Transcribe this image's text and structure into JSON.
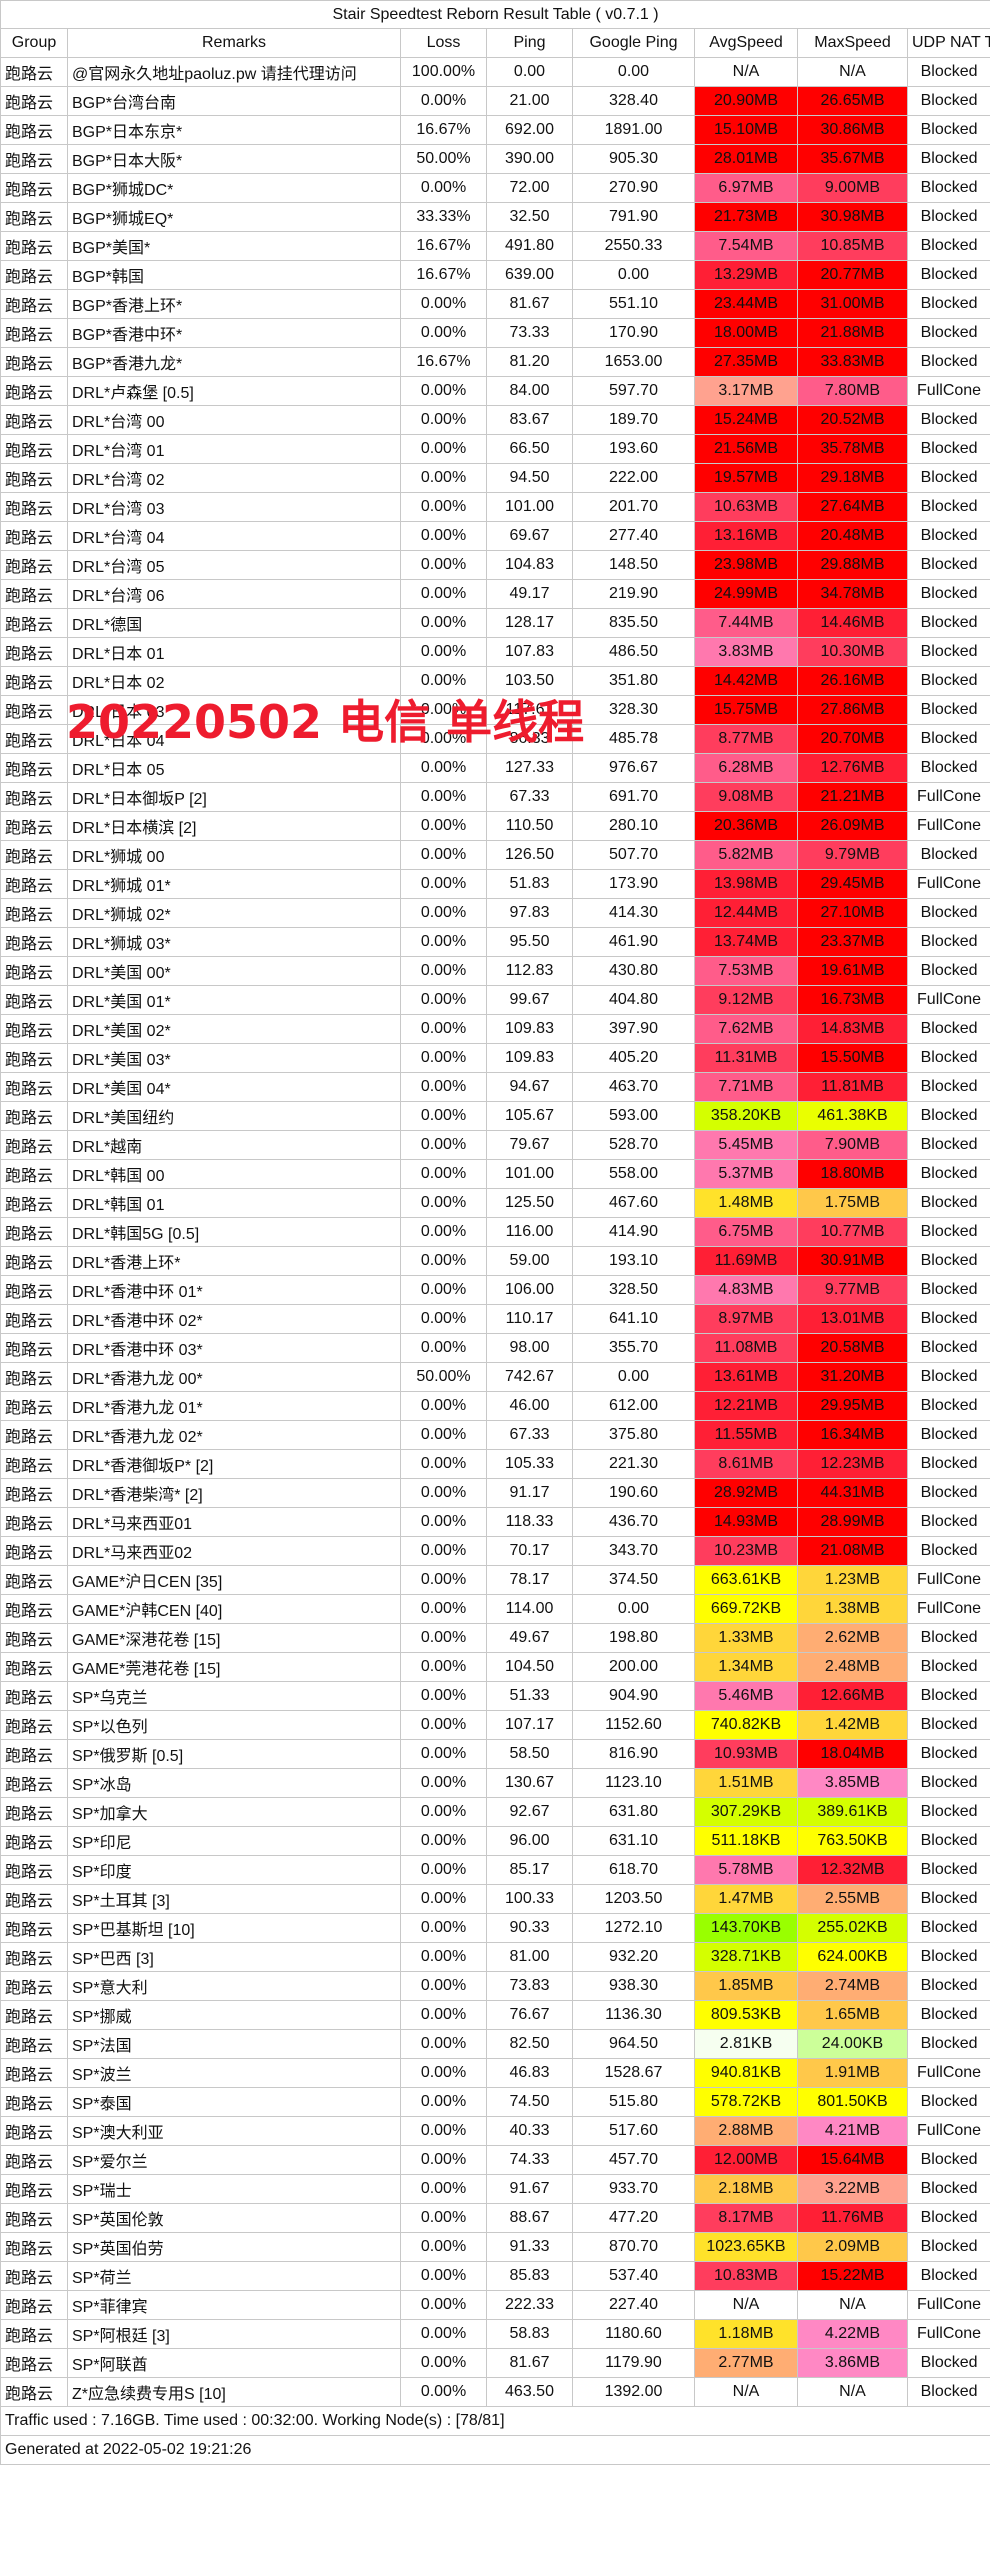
{
  "title": "Stair Speedtest Reborn Result Table ( v0.7.1 )",
  "headers": [
    "Group",
    "Remarks",
    "Loss",
    "Ping",
    "Google Ping",
    "AvgSpeed",
    "MaxSpeed",
    "UDP NAT Type"
  ],
  "watermark": "20220502 电信 单线程",
  "colors": {
    "r": "#ff0000",
    "r2": "#ff1f35",
    "r3": "#ff3d5d",
    "pk": "#ff5c8a",
    "lp": "#ff78ae",
    "sa": "#ffa28f",
    "or": "#ffad73",
    "g3": "#ffc84a",
    "g2": "#ffd63a",
    "g": "#ffe22a",
    "y": "#ffff00",
    "yl": "#eaff00",
    "lm": "#d4ff00",
    "gr": "#99ff00",
    "lv": "#ff88c4",
    "wg": "#f6fff0",
    "lg": "#ccff99",
    "n": "#ffffff"
  },
  "rows": [
    [
      "跑路云",
      "@官网永久地址paoluz.pw 请挂代理访问",
      "100.00%",
      "0.00",
      "0.00",
      "N/A",
      "n",
      "N/A",
      "n",
      "Blocked"
    ],
    [
      "跑路云",
      "BGP*台湾台南",
      "0.00%",
      "21.00",
      "328.40",
      "20.90MB",
      "r",
      "26.65MB",
      "r",
      "Blocked"
    ],
    [
      "跑路云",
      "BGP*日本东京*",
      "16.67%",
      "692.00",
      "1891.00",
      "15.10MB",
      "r",
      "30.86MB",
      "r",
      "Blocked"
    ],
    [
      "跑路云",
      "BGP*日本大阪*",
      "50.00%",
      "390.00",
      "905.30",
      "28.01MB",
      "r",
      "35.67MB",
      "r",
      "Blocked"
    ],
    [
      "跑路云",
      "BGP*狮城DC*",
      "0.00%",
      "72.00",
      "270.90",
      "6.97MB",
      "pk",
      "9.00MB",
      "r3",
      "Blocked"
    ],
    [
      "跑路云",
      "BGP*狮城EQ*",
      "33.33%",
      "32.50",
      "791.90",
      "21.73MB",
      "r",
      "30.98MB",
      "r",
      "Blocked"
    ],
    [
      "跑路云",
      "BGP*美国*",
      "16.67%",
      "491.80",
      "2550.33",
      "7.54MB",
      "pk",
      "10.85MB",
      "r3",
      "Blocked"
    ],
    [
      "跑路云",
      "BGP*韩国",
      "16.67%",
      "639.00",
      "0.00",
      "13.29MB",
      "r2",
      "20.77MB",
      "r",
      "Blocked"
    ],
    [
      "跑路云",
      "BGP*香港上环*",
      "0.00%",
      "81.67",
      "551.10",
      "23.44MB",
      "r",
      "31.00MB",
      "r",
      "Blocked"
    ],
    [
      "跑路云",
      "BGP*香港中环*",
      "0.00%",
      "73.33",
      "170.90",
      "18.00MB",
      "r",
      "21.88MB",
      "r",
      "Blocked"
    ],
    [
      "跑路云",
      "BGP*香港九龙*",
      "16.67%",
      "81.20",
      "1653.00",
      "27.35MB",
      "r",
      "33.83MB",
      "r",
      "Blocked"
    ],
    [
      "跑路云",
      "DRL*卢森堡 [0.5]",
      "0.00%",
      "84.00",
      "597.70",
      "3.17MB",
      "sa",
      "7.80MB",
      "pk",
      "FullCone"
    ],
    [
      "跑路云",
      "DRL*台湾 00",
      "0.00%",
      "83.67",
      "189.70",
      "15.24MB",
      "r",
      "20.52MB",
      "r",
      "Blocked"
    ],
    [
      "跑路云",
      "DRL*台湾 01",
      "0.00%",
      "66.50",
      "193.60",
      "21.56MB",
      "r",
      "35.78MB",
      "r",
      "Blocked"
    ],
    [
      "跑路云",
      "DRL*台湾 02",
      "0.00%",
      "94.50",
      "222.00",
      "19.57MB",
      "r",
      "29.18MB",
      "r",
      "Blocked"
    ],
    [
      "跑路云",
      "DRL*台湾 03",
      "0.00%",
      "101.00",
      "201.70",
      "10.63MB",
      "r3",
      "27.64MB",
      "r",
      "Blocked"
    ],
    [
      "跑路云",
      "DRL*台湾 04",
      "0.00%",
      "69.67",
      "277.40",
      "13.16MB",
      "r2",
      "20.48MB",
      "r",
      "Blocked"
    ],
    [
      "跑路云",
      "DRL*台湾 05",
      "0.00%",
      "104.83",
      "148.50",
      "23.98MB",
      "r",
      "29.88MB",
      "r",
      "Blocked"
    ],
    [
      "跑路云",
      "DRL*台湾 06",
      "0.00%",
      "49.17",
      "219.90",
      "24.99MB",
      "r",
      "34.78MB",
      "r",
      "Blocked"
    ],
    [
      "跑路云",
      "DRL*德国",
      "0.00%",
      "128.17",
      "835.50",
      "7.44MB",
      "pk",
      "14.46MB",
      "r2",
      "Blocked"
    ],
    [
      "跑路云",
      "DRL*日本 01",
      "0.00%",
      "107.83",
      "486.50",
      "3.83MB",
      "lp",
      "10.30MB",
      "r3",
      "Blocked"
    ],
    [
      "跑路云",
      "DRL*日本 02",
      "0.00%",
      "103.50",
      "351.80",
      "14.42MB",
      "r",
      "26.16MB",
      "r",
      "Blocked"
    ],
    [
      "跑路云",
      "DRL*日本 03",
      "0.00%",
      "117.67",
      "328.30",
      "15.75MB",
      "r",
      "27.86MB",
      "r",
      "Blocked"
    ],
    [
      "跑路云",
      "DRL*日本 04",
      "0.00%",
      "86.33",
      "485.78",
      "8.77MB",
      "r3",
      "20.70MB",
      "r",
      "Blocked"
    ],
    [
      "跑路云",
      "DRL*日本 05",
      "0.00%",
      "127.33",
      "976.67",
      "6.28MB",
      "pk",
      "12.76MB",
      "r2",
      "Blocked"
    ],
    [
      "跑路云",
      "DRL*日本御坂P [2]",
      "0.00%",
      "67.33",
      "691.70",
      "9.08MB",
      "r3",
      "21.21MB",
      "r",
      "FullCone"
    ],
    [
      "跑路云",
      "DRL*日本横滨 [2]",
      "0.00%",
      "110.50",
      "280.10",
      "20.36MB",
      "r",
      "26.09MB",
      "r",
      "FullCone"
    ],
    [
      "跑路云",
      "DRL*狮城 00",
      "0.00%",
      "126.50",
      "507.70",
      "5.82MB",
      "pk",
      "9.79MB",
      "r3",
      "Blocked"
    ],
    [
      "跑路云",
      "DRL*狮城 01*",
      "0.00%",
      "51.83",
      "173.90",
      "13.98MB",
      "r2",
      "29.45MB",
      "r",
      "FullCone"
    ],
    [
      "跑路云",
      "DRL*狮城 02*",
      "0.00%",
      "97.83",
      "414.30",
      "12.44MB",
      "r2",
      "27.10MB",
      "r",
      "Blocked"
    ],
    [
      "跑路云",
      "DRL*狮城 03*",
      "0.00%",
      "95.50",
      "461.90",
      "13.74MB",
      "r2",
      "23.37MB",
      "r",
      "Blocked"
    ],
    [
      "跑路云",
      "DRL*美国 00*",
      "0.00%",
      "112.83",
      "430.80",
      "7.53MB",
      "pk",
      "19.61MB",
      "r",
      "Blocked"
    ],
    [
      "跑路云",
      "DRL*美国 01*",
      "0.00%",
      "99.67",
      "404.80",
      "9.12MB",
      "r3",
      "16.73MB",
      "r",
      "FullCone"
    ],
    [
      "跑路云",
      "DRL*美国 02*",
      "0.00%",
      "109.83",
      "397.90",
      "7.62MB",
      "pk",
      "14.83MB",
      "r2",
      "Blocked"
    ],
    [
      "跑路云",
      "DRL*美国 03*",
      "0.00%",
      "109.83",
      "405.20",
      "11.31MB",
      "r3",
      "15.50MB",
      "r",
      "Blocked"
    ],
    [
      "跑路云",
      "DRL*美国 04*",
      "0.00%",
      "94.67",
      "463.70",
      "7.71MB",
      "pk",
      "11.81MB",
      "r2",
      "Blocked"
    ],
    [
      "跑路云",
      "DRL*美国纽约",
      "0.00%",
      "105.67",
      "593.00",
      "358.20KB",
      "lm",
      "461.38KB",
      "yl",
      "Blocked"
    ],
    [
      "跑路云",
      "DRL*越南",
      "0.00%",
      "79.67",
      "528.70",
      "5.45MB",
      "lp",
      "7.90MB",
      "pk",
      "Blocked"
    ],
    [
      "跑路云",
      "DRL*韩国 00",
      "0.00%",
      "101.00",
      "558.00",
      "5.37MB",
      "lp",
      "18.80MB",
      "r",
      "Blocked"
    ],
    [
      "跑路云",
      "DRL*韩国 01",
      "0.00%",
      "125.50",
      "467.60",
      "1.48MB",
      "g",
      "1.75MB",
      "g3",
      "Blocked"
    ],
    [
      "跑路云",
      "DRL*韩国5G [0.5]",
      "0.00%",
      "116.00",
      "414.90",
      "6.75MB",
      "pk",
      "10.77MB",
      "r3",
      "Blocked"
    ],
    [
      "跑路云",
      "DRL*香港上环*",
      "0.00%",
      "59.00",
      "193.10",
      "11.69MB",
      "r2",
      "30.91MB",
      "r",
      "Blocked"
    ],
    [
      "跑路云",
      "DRL*香港中环 01*",
      "0.00%",
      "106.00",
      "328.50",
      "4.83MB",
      "lp",
      "9.77MB",
      "r3",
      "Blocked"
    ],
    [
      "跑路云",
      "DRL*香港中环 02*",
      "0.00%",
      "110.17",
      "641.10",
      "8.97MB",
      "r3",
      "13.01MB",
      "r2",
      "Blocked"
    ],
    [
      "跑路云",
      "DRL*香港中环 03*",
      "0.00%",
      "98.00",
      "355.70",
      "11.08MB",
      "r3",
      "20.58MB",
      "r",
      "Blocked"
    ],
    [
      "跑路云",
      "DRL*香港九龙 00*",
      "50.00%",
      "742.67",
      "0.00",
      "13.61MB",
      "r2",
      "31.20MB",
      "r",
      "Blocked"
    ],
    [
      "跑路云",
      "DRL*香港九龙 01*",
      "0.00%",
      "46.00",
      "612.00",
      "12.21MB",
      "r2",
      "29.95MB",
      "r",
      "Blocked"
    ],
    [
      "跑路云",
      "DRL*香港九龙 02*",
      "0.00%",
      "67.33",
      "375.80",
      "11.55MB",
      "r2",
      "16.34MB",
      "r",
      "Blocked"
    ],
    [
      "跑路云",
      "DRL*香港御坂P* [2]",
      "0.00%",
      "105.33",
      "221.30",
      "8.61MB",
      "r3",
      "12.23MB",
      "r2",
      "Blocked"
    ],
    [
      "跑路云",
      "DRL*香港柴湾* [2]",
      "0.00%",
      "91.17",
      "190.60",
      "28.92MB",
      "r",
      "44.31MB",
      "r",
      "Blocked"
    ],
    [
      "跑路云",
      "DRL*马来西亚01",
      "0.00%",
      "118.33",
      "436.70",
      "14.93MB",
      "r",
      "28.99MB",
      "r",
      "Blocked"
    ],
    [
      "跑路云",
      "DRL*马来西亚02",
      "0.00%",
      "70.17",
      "343.70",
      "10.23MB",
      "r3",
      "21.08MB",
      "r",
      "Blocked"
    ],
    [
      "跑路云",
      "GAME*沪日CEN [35]",
      "0.00%",
      "78.17",
      "374.50",
      "663.61KB",
      "y",
      "1.23MB",
      "g2",
      "FullCone"
    ],
    [
      "跑路云",
      "GAME*沪韩CEN [40]",
      "0.00%",
      "114.00",
      "0.00",
      "669.72KB",
      "y",
      "1.38MB",
      "g2",
      "FullCone"
    ],
    [
      "跑路云",
      "GAME*深港花卷 [15]",
      "0.00%",
      "49.67",
      "198.80",
      "1.33MB",
      "g2",
      "2.62MB",
      "or",
      "Blocked"
    ],
    [
      "跑路云",
      "GAME*莞港花卷 [15]",
      "0.00%",
      "104.50",
      "200.00",
      "1.34MB",
      "g2",
      "2.48MB",
      "or",
      "Blocked"
    ],
    [
      "跑路云",
      "SP*乌克兰",
      "0.00%",
      "51.33",
      "904.90",
      "5.46MB",
      "lp",
      "12.66MB",
      "r2",
      "Blocked"
    ],
    [
      "跑路云",
      "SP*以色列",
      "0.00%",
      "107.17",
      "1152.60",
      "740.82KB",
      "y",
      "1.42MB",
      "g2",
      "Blocked"
    ],
    [
      "跑路云",
      "SP*俄罗斯 [0.5]",
      "0.00%",
      "58.50",
      "816.90",
      "10.93MB",
      "r3",
      "18.04MB",
      "r",
      "Blocked"
    ],
    [
      "跑路云",
      "SP*冰岛",
      "0.00%",
      "130.67",
      "1123.10",
      "1.51MB",
      "g2",
      "3.85MB",
      "lv",
      "Blocked"
    ],
    [
      "跑路云",
      "SP*加拿大",
      "0.00%",
      "92.67",
      "631.80",
      "307.29KB",
      "lm",
      "389.61KB",
      "lm",
      "Blocked"
    ],
    [
      "跑路云",
      "SP*印尼",
      "0.00%",
      "96.00",
      "631.10",
      "511.18KB",
      "y",
      "763.50KB",
      "y",
      "Blocked"
    ],
    [
      "跑路云",
      "SP*印度",
      "0.00%",
      "85.17",
      "618.70",
      "5.78MB",
      "lp",
      "12.32MB",
      "r2",
      "Blocked"
    ],
    [
      "跑路云",
      "SP*土耳其 [3]",
      "0.00%",
      "100.33",
      "1203.50",
      "1.47MB",
      "g2",
      "2.55MB",
      "or",
      "Blocked"
    ],
    [
      "跑路云",
      "SP*巴基斯坦 [10]",
      "0.00%",
      "90.33",
      "1272.10",
      "143.70KB",
      "gr",
      "255.02KB",
      "lm",
      "Blocked"
    ],
    [
      "跑路云",
      "SP*巴西 [3]",
      "0.00%",
      "81.00",
      "932.20",
      "328.71KB",
      "lm",
      "624.00KB",
      "y",
      "Blocked"
    ],
    [
      "跑路云",
      "SP*意大利",
      "0.00%",
      "73.83",
      "938.30",
      "1.85MB",
      "g3",
      "2.74MB",
      "or",
      "Blocked"
    ],
    [
      "跑路云",
      "SP*挪威",
      "0.00%",
      "76.67",
      "1136.30",
      "809.53KB",
      "y",
      "1.65MB",
      "g3",
      "Blocked"
    ],
    [
      "跑路云",
      "SP*法国",
      "0.00%",
      "82.50",
      "964.50",
      "2.81KB",
      "wg",
      "24.00KB",
      "lg",
      "Blocked"
    ],
    [
      "跑路云",
      "SP*波兰",
      "0.00%",
      "46.83",
      "1528.67",
      "940.81KB",
      "y",
      "1.91MB",
      "g3",
      "FullCone"
    ],
    [
      "跑路云",
      "SP*泰国",
      "0.00%",
      "74.50",
      "515.80",
      "578.72KB",
      "y",
      "801.50KB",
      "y",
      "Blocked"
    ],
    [
      "跑路云",
      "SP*澳大利亚",
      "0.00%",
      "40.33",
      "517.60",
      "2.88MB",
      "or",
      "4.21MB",
      "lv",
      "FullCone"
    ],
    [
      "跑路云",
      "SP*爱尔兰",
      "0.00%",
      "74.33",
      "457.70",
      "12.00MB",
      "r2",
      "15.64MB",
      "r",
      "Blocked"
    ],
    [
      "跑路云",
      "SP*瑞士",
      "0.00%",
      "91.67",
      "933.70",
      "2.18MB",
      "g3",
      "3.22MB",
      "sa",
      "Blocked"
    ],
    [
      "跑路云",
      "SP*英国伦敦",
      "0.00%",
      "88.67",
      "477.20",
      "8.17MB",
      "r3",
      "11.76MB",
      "r2",
      "Blocked"
    ],
    [
      "跑路云",
      "SP*英国伯劳",
      "0.00%",
      "91.33",
      "870.70",
      "1023.65KB",
      "g",
      "2.09MB",
      "g3",
      "Blocked"
    ],
    [
      "跑路云",
      "SP*荷兰",
      "0.00%",
      "85.83",
      "537.40",
      "10.83MB",
      "r3",
      "15.22MB",
      "r",
      "Blocked"
    ],
    [
      "跑路云",
      "SP*菲律宾",
      "0.00%",
      "222.33",
      "227.40",
      "N/A",
      "n",
      "N/A",
      "n",
      "FullCone"
    ],
    [
      "跑路云",
      "SP*阿根廷 [3]",
      "0.00%",
      "58.83",
      "1180.60",
      "1.18MB",
      "g",
      "4.22MB",
      "lv",
      "FullCone"
    ],
    [
      "跑路云",
      "SP*阿联酋",
      "0.00%",
      "81.67",
      "1179.90",
      "2.77MB",
      "or",
      "3.86MB",
      "lv",
      "Blocked"
    ],
    [
      "跑路云",
      "Z*应急续费专用S [10]",
      "0.00%",
      "463.50",
      "1392.00",
      "N/A",
      "n",
      "N/A",
      "n",
      "Blocked"
    ]
  ],
  "footer": {
    "traffic": "Traffic used : 7.16GB. Time used : 00:32:00. Working Node(s) : [78/81]",
    "generated": "Generated at 2022-05-02 19:21:26"
  }
}
